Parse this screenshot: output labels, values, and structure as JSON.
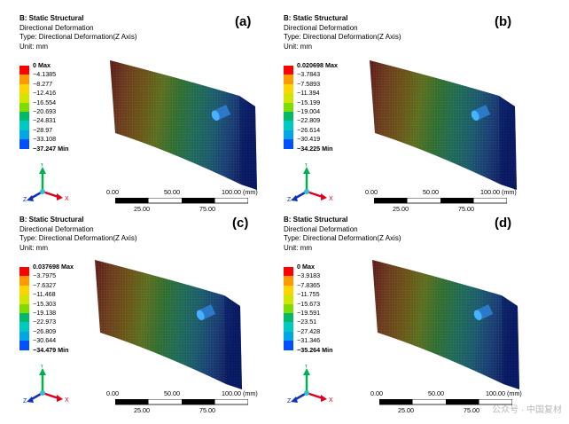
{
  "panels": [
    {
      "id": "a",
      "label": "(a)",
      "title": "B: Static Structural",
      "result": "Directional Deformation",
      "type": "Type: Directional Deformation(Z Axis)",
      "unit": "Unit: mm",
      "legend": [
        "0 Max",
        "−4.1385",
        "−8.277",
        "−12.416",
        "−16.554",
        "−20.693",
        "−24.831",
        "−28.97",
        "−33.108",
        "−37.247 Min"
      ]
    },
    {
      "id": "b",
      "label": "(b)",
      "title": "B: Static Structural",
      "result": "Directional Deformation",
      "type": "Type: Directional Deformation(Z Axis)",
      "unit": "Unit: mm",
      "legend": [
        "0.020698 Max",
        "−3.7843",
        "−7.5893",
        "−11.394",
        "−15.199",
        "−19.004",
        "−22.809",
        "−26.614",
        "−30.419",
        "−34.225 Min"
      ]
    },
    {
      "id": "c",
      "label": "(c)",
      "title": "B: Static Structural",
      "result": "Directional Deformation",
      "type": "Type: Directional Deformation(Z Axis)",
      "unit": "Unit: mm",
      "legend": [
        "0.037698 Max",
        "−3.7975",
        "−7.6327",
        "−11.468",
        "−15.303",
        "−19.138",
        "−22.973",
        "−26.809",
        "−30.644",
        "−34.479 Min"
      ]
    },
    {
      "id": "d",
      "label": "(d)",
      "title": "B: Static Structural",
      "result": "Directional Deformation",
      "type": "Type: Directional Deformation(Z Axis)",
      "unit": "Unit: mm",
      "legend": [
        "0 Max",
        "−3.9183",
        "−7.8365",
        "−11.755",
        "−15.673",
        "−19.591",
        "−23.51",
        "−27.428",
        "−31.346",
        "−35.264 Min"
      ]
    }
  ],
  "legend_colors": [
    "#ff0000",
    "#ff9900",
    "#ffd400",
    "#d3e400",
    "#7edc00",
    "#00b96b",
    "#00c9c1",
    "#00a6e6",
    "#0050ff"
  ],
  "model_colors": [
    "#5b1a1a",
    "#6a3b1c",
    "#6a5216",
    "#5b6d1e",
    "#2f6e2f",
    "#1f6a55",
    "#1a5a6b",
    "#183c74",
    "#0d1a5c"
  ],
  "scale_labels_top": [
    "0.00",
    "50.00",
    "100.00 (mm)"
  ],
  "scale_labels_bottom": [
    "25.00",
    "75.00"
  ],
  "axis_labels": {
    "y": "Y",
    "x": "X",
    "z": "Z"
  },
  "watermark": "公众号 · 中国复材"
}
